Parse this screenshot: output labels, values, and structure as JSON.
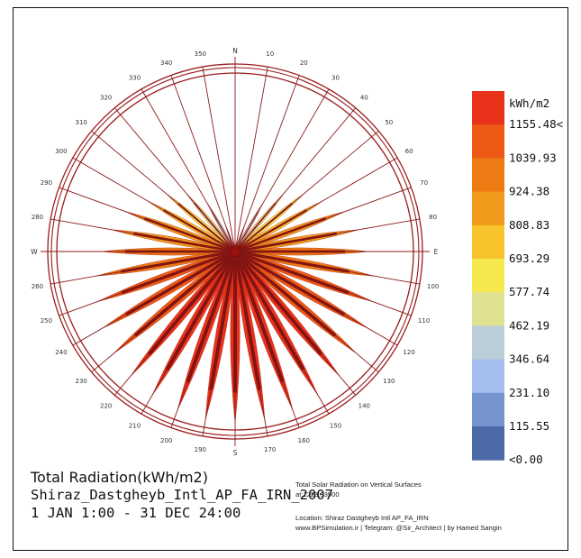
{
  "chart_data": {
    "type": "radial",
    "legend": {
      "unit": "kWh/m2",
      "labels": [
        "1155.48<",
        "1039.93",
        "924.38",
        "808.83",
        "693.29",
        "577.74",
        "462.19",
        "346.64",
        "231.10",
        "115.55",
        "<0.00"
      ],
      "colors": [
        "#e8321a",
        "#ec5a16",
        "#ee7a14",
        "#f29a1c",
        "#f7c22c",
        "#f5e84e",
        "#e0e291",
        "#bccfd8",
        "#a4beee",
        "#7593cc",
        "#4d6aa8"
      ]
    },
    "directions": {
      "cardinal": {
        "N": "N",
        "E": "E",
        "S": "S",
        "W": "W"
      },
      "degree_labels": [
        "10",
        "20",
        "30",
        "40",
        "50",
        "60",
        "70",
        "80",
        "100",
        "110",
        "120",
        "130",
        "140",
        "150",
        "160",
        "170",
        "190",
        "200",
        "210",
        "220",
        "230",
        "240",
        "250",
        "260",
        "280",
        "290",
        "300",
        "310",
        "320",
        "330",
        "340",
        "350"
      ]
    },
    "series": [
      {
        "azimuth": 0,
        "value": 30
      },
      {
        "azimuth": 10,
        "value": 90
      },
      {
        "azimuth": 20,
        "value": 200
      },
      {
        "azimuth": 30,
        "value": 400
      },
      {
        "azimuth": 40,
        "value": 550
      },
      {
        "azimuth": 50,
        "value": 650
      },
      {
        "azimuth": 60,
        "value": 720
      },
      {
        "azimuth": 70,
        "value": 840
      },
      {
        "azimuth": 80,
        "value": 900
      },
      {
        "azimuth": 90,
        "value": 960
      },
      {
        "azimuth": 100,
        "value": 1010
      },
      {
        "azimuth": 110,
        "value": 1050
      },
      {
        "azimuth": 120,
        "value": 1100
      },
      {
        "azimuth": 130,
        "value": 1140
      },
      {
        "azimuth": 140,
        "value": 1170
      },
      {
        "azimuth": 150,
        "value": 1190
      },
      {
        "azimuth": 160,
        "value": 1210
      },
      {
        "azimuth": 170,
        "value": 1225
      },
      {
        "azimuth": 180,
        "value": 1230
      },
      {
        "azimuth": 190,
        "value": 1225
      },
      {
        "azimuth": 200,
        "value": 1210
      },
      {
        "azimuth": 210,
        "value": 1190
      },
      {
        "azimuth": 220,
        "value": 1170
      },
      {
        "azimuth": 230,
        "value": 1140
      },
      {
        "azimuth": 240,
        "value": 1100
      },
      {
        "azimuth": 250,
        "value": 1050
      },
      {
        "azimuth": 260,
        "value": 1010
      },
      {
        "azimuth": 270,
        "value": 960
      },
      {
        "azimuth": 280,
        "value": 900
      },
      {
        "azimuth": 290,
        "value": 840
      },
      {
        "azimuth": 300,
        "value": 720
      },
      {
        "azimuth": 310,
        "value": 650
      },
      {
        "azimuth": 320,
        "value": 550
      },
      {
        "azimuth": 330,
        "value": 400
      },
      {
        "azimuth": 340,
        "value": 200
      },
      {
        "azimuth": 350,
        "value": 90
      }
    ],
    "rlim": [
      0,
      1250
    ]
  },
  "text": {
    "title_line1": "Total Radiation(kWh/m2)",
    "title_line2": "Shiraz_Dastgheyb_Intl_AP_FA_IRN_2007",
    "title_line3": "1 JAN 1:00 - 31 DEC 24:00",
    "info_line1": "Total Solar Radiation on Vertical Surfaces",
    "info_line2": "at:1223.33900",
    "info_line3": "Location: Shiraz Dastgheyb Intl AP_FA_IRN",
    "info_line4": "www.BPSimulation.ir | Telegram: @Sir_Architect | by Hamed Sangin"
  },
  "colors": {
    "ring": "#9b1c1c",
    "spoke": "#8b1a1a",
    "center": "#9b1010"
  }
}
